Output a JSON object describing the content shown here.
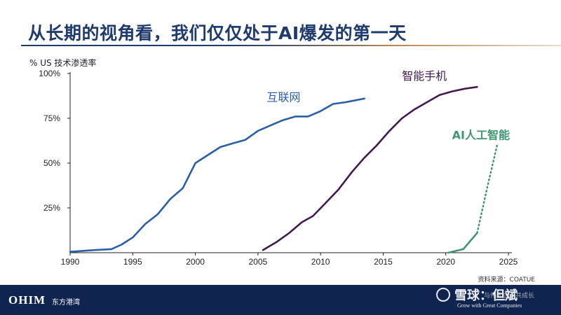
{
  "title": "从长期的视角看，我们仅仅处于AI爆发的第一天",
  "source": "资料来源：COATUE",
  "footer": {
    "logo": "OHIM",
    "logo_cn": "东方港湾",
    "tagline": "Grow with Great Companies",
    "tagline_cn": "与伟大企业共成长",
    "watermark": "雪球：但斌"
  },
  "chart_data": {
    "type": "line",
    "ylabel": "% US 技术渗透率",
    "xlim": [
      1990,
      2025
    ],
    "ylim": [
      0,
      100
    ],
    "x_ticks": [
      1990,
      1995,
      2000,
      2005,
      2010,
      2015,
      2020,
      2025
    ],
    "y_ticks": [
      25,
      50,
      75,
      100
    ],
    "y_tick_labels": [
      "25%",
      "50%",
      "75%",
      "100%"
    ],
    "grid": false,
    "series": [
      {
        "name": "互联网",
        "color": "#2a5fa6",
        "style": "solid",
        "x": [
          1990,
          1991,
          1992,
          1993.3,
          1994.1,
          1995,
          1996,
          1997,
          1998,
          1999,
          2000,
          2001,
          2002,
          2003,
          2004,
          2005,
          2006,
          2007,
          2008,
          2009,
          2010,
          2011,
          2012,
          2013.5
        ],
        "y": [
          0.5,
          1,
          1.5,
          2,
          4.5,
          8.5,
          16,
          21.5,
          30,
          36,
          50,
          54.5,
          59,
          61,
          63,
          68,
          71,
          74,
          76,
          76,
          79,
          83,
          84,
          86
        ]
      },
      {
        "name": "智能手机",
        "color": "#431a4e",
        "style": "solid",
        "x": [
          2005.4,
          2006.5,
          2007.5,
          2008.5,
          2009.4,
          2010.3,
          2011.4,
          2012.5,
          2013.5,
          2014.5,
          2015.5,
          2016.5,
          2017.5,
          2018.5,
          2019.5,
          2020.5,
          2021.5,
          2022.5
        ],
        "y": [
          1.5,
          6,
          11,
          17,
          20.5,
          27,
          35,
          45,
          53,
          60,
          68,
          75,
          80,
          84,
          88,
          90,
          91.5,
          92.5
        ]
      },
      {
        "name": "AI人工智能",
        "color": "#3f9570",
        "style": "solid",
        "x": [
          2020.2,
          2021.4,
          2022.5
        ],
        "y": [
          0,
          2,
          11
        ]
      },
      {
        "name": "AI人工智能",
        "color": "#3f9570",
        "style": "dotted",
        "x": [
          2022.5,
          2023.3,
          2024.1
        ],
        "y": [
          11,
          36,
          60
        ]
      }
    ],
    "labels": [
      {
        "text": "互联网",
        "color": "#2a5fa6",
        "at": [
          2005.7,
          84.5
        ]
      },
      {
        "text": "智能手机",
        "color": "#431a4e",
        "at": [
          2016.5,
          96.5
        ]
      },
      {
        "text": "AI人工智能",
        "color": "#3f9570",
        "at": [
          2020.5,
          63.5
        ]
      }
    ]
  }
}
